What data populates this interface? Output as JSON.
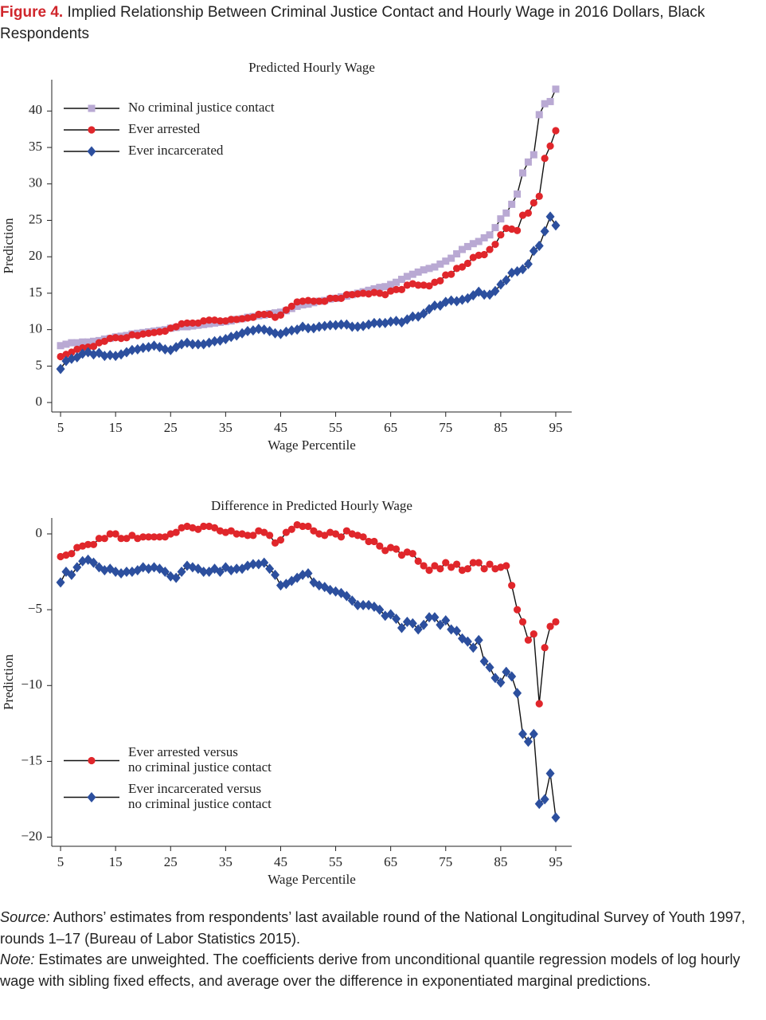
{
  "header": {
    "label": "Figure 4.",
    "title": "Implied Relationship Between Criminal Justice Contact and Hourly Wage in 2016 Dollars, Black Respondents"
  },
  "chart_data": [
    {
      "type": "line",
      "title": "Predicted Hourly Wage",
      "xlabel": "Wage Percentile",
      "ylabel": "Prediction",
      "x": [
        5,
        6,
        7,
        8,
        9,
        10,
        11,
        12,
        13,
        14,
        15,
        16,
        17,
        18,
        19,
        20,
        21,
        22,
        23,
        24,
        25,
        26,
        27,
        28,
        29,
        30,
        31,
        32,
        33,
        34,
        35,
        36,
        37,
        38,
        39,
        40,
        41,
        42,
        43,
        44,
        45,
        46,
        47,
        48,
        49,
        50,
        51,
        52,
        53,
        54,
        55,
        56,
        57,
        58,
        59,
        60,
        61,
        62,
        63,
        64,
        65,
        66,
        67,
        68,
        69,
        70,
        71,
        72,
        73,
        74,
        75,
        76,
        77,
        78,
        79,
        80,
        81,
        82,
        83,
        84,
        85,
        86,
        87,
        88,
        89,
        90,
        91,
        92,
        93,
        94,
        95
      ],
      "xlim": [
        3.4,
        97.9
      ],
      "xticks": [
        5,
        15,
        25,
        35,
        45,
        55,
        65,
        75,
        85,
        95
      ],
      "ylim": [
        -1.3,
        44.3
      ],
      "yticks": [
        0,
        5,
        10,
        15,
        20,
        25,
        30,
        35,
        40
      ],
      "legend": "upper left",
      "series": [
        {
          "name": "No criminal justice contact",
          "color": "#b9a9d3",
          "marker": "square",
          "values": [
            7.8,
            8.0,
            8.2,
            8.2,
            8.3,
            8.3,
            8.4,
            8.5,
            8.7,
            8.8,
            9.0,
            9.1,
            9.2,
            9.4,
            9.5,
            9.6,
            9.7,
            9.8,
            9.9,
            10.0,
            10.2,
            10.3,
            10.4,
            10.4,
            10.5,
            10.6,
            10.7,
            10.8,
            10.9,
            11.0,
            11.1,
            11.2,
            11.4,
            11.5,
            11.7,
            11.8,
            11.9,
            12.0,
            12.2,
            12.3,
            12.4,
            12.6,
            12.9,
            13.2,
            13.4,
            13.5,
            13.7,
            13.9,
            14.0,
            14.2,
            14.3,
            14.5,
            14.6,
            14.8,
            15.0,
            15.2,
            15.4,
            15.6,
            15.8,
            15.9,
            16.2,
            16.5,
            16.9,
            17.3,
            17.6,
            17.9,
            18.2,
            18.4,
            18.6,
            19.0,
            19.4,
            19.8,
            20.4,
            21.0,
            21.4,
            21.8,
            22.1,
            22.6,
            23.0,
            24.0,
            25.2,
            26.0,
            27.2,
            28.6,
            31.5,
            33.0,
            34.0,
            39.5,
            41.0,
            41.3,
            43.0
          ]
        },
        {
          "name": "Ever arrested",
          "color": "#e0262b",
          "marker": "circle",
          "values": [
            6.3,
            6.6,
            6.9,
            7.3,
            7.5,
            7.6,
            7.7,
            8.2,
            8.4,
            8.8,
            8.9,
            8.8,
            8.9,
            9.3,
            9.2,
            9.4,
            9.5,
            9.6,
            9.7,
            9.8,
            10.2,
            10.4,
            10.8,
            10.9,
            10.9,
            10.9,
            11.2,
            11.3,
            11.3,
            11.2,
            11.2,
            11.4,
            11.4,
            11.5,
            11.6,
            11.7,
            12.1,
            12.1,
            12.1,
            11.7,
            12.0,
            12.7,
            13.2,
            13.8,
            13.9,
            14.0,
            13.9,
            13.9,
            13.9,
            14.3,
            14.3,
            14.3,
            14.8,
            14.8,
            14.9,
            15.0,
            14.9,
            15.1,
            15.0,
            14.8,
            15.3,
            15.5,
            15.5,
            16.1,
            16.3,
            16.1,
            16.1,
            16.0,
            16.5,
            16.7,
            17.5,
            17.6,
            18.4,
            18.6,
            19.1,
            19.9,
            20.2,
            20.3,
            21.0,
            21.7,
            23.0,
            23.9,
            23.8,
            23.6,
            25.7,
            26.0,
            27.4,
            28.3,
            33.5,
            35.2,
            37.3
          ]
        },
        {
          "name": "Ever incarcerated",
          "color": "#2c4f9e",
          "marker": "diamond",
          "values": [
            4.6,
            5.7,
            6.0,
            6.2,
            6.7,
            6.9,
            6.6,
            6.8,
            6.4,
            6.5,
            6.4,
            6.6,
            6.9,
            7.2,
            7.3,
            7.5,
            7.6,
            7.8,
            7.6,
            7.3,
            7.2,
            7.6,
            8.0,
            8.2,
            8.0,
            8.0,
            8.0,
            8.2,
            8.4,
            8.5,
            8.7,
            9.0,
            9.2,
            9.5,
            9.8,
            9.9,
            10.1,
            10.0,
            9.8,
            9.5,
            9.4,
            9.7,
            9.9,
            10.0,
            10.4,
            10.2,
            10.2,
            10.4,
            10.5,
            10.6,
            10.6,
            10.7,
            10.7,
            10.4,
            10.4,
            10.5,
            10.7,
            10.9,
            10.9,
            10.9,
            11.1,
            11.2,
            11.0,
            11.4,
            11.8,
            11.8,
            12.2,
            12.8,
            13.3,
            13.3,
            13.8,
            14.0,
            13.9,
            14.1,
            14.3,
            14.7,
            15.2,
            14.8,
            14.8,
            15.3,
            16.2,
            16.8,
            17.8,
            18.0,
            18.3,
            19.0,
            20.8,
            21.5,
            23.5,
            25.5,
            24.3
          ]
        }
      ]
    },
    {
      "type": "line",
      "title": "Difference in Predicted Hourly Wage",
      "xlabel": "Wage Percentile",
      "ylabel": "Prediction",
      "x": [
        5,
        6,
        7,
        8,
        9,
        10,
        11,
        12,
        13,
        14,
        15,
        16,
        17,
        18,
        19,
        20,
        21,
        22,
        23,
        24,
        25,
        26,
        27,
        28,
        29,
        30,
        31,
        32,
        33,
        34,
        35,
        36,
        37,
        38,
        39,
        40,
        41,
        42,
        43,
        44,
        45,
        46,
        47,
        48,
        49,
        50,
        51,
        52,
        53,
        54,
        55,
        56,
        57,
        58,
        59,
        60,
        61,
        62,
        63,
        64,
        65,
        66,
        67,
        68,
        69,
        70,
        71,
        72,
        73,
        74,
        75,
        76,
        77,
        78,
        79,
        80,
        81,
        82,
        83,
        84,
        85,
        86,
        87,
        88,
        89,
        90,
        91,
        92,
        93,
        94,
        95
      ],
      "xlim": [
        3.4,
        97.9
      ],
      "xticks": [
        5,
        15,
        25,
        35,
        45,
        55,
        65,
        75,
        85,
        95
      ],
      "ylim": [
        -20.6,
        1.05
      ],
      "yticks": [
        0,
        {
          "value": -5,
          "label": "−5"
        },
        {
          "value": -10,
          "label": "−10"
        },
        {
          "value": -15,
          "label": "−15"
        },
        {
          "value": -20,
          "label": "−20"
        }
      ],
      "legend": "lower left",
      "series": [
        {
          "name": "Ever arrested versus\nno criminal justice contact",
          "color": "#e0262b",
          "marker": "circle",
          "values": [
            -1.5,
            -1.4,
            -1.3,
            -0.9,
            -0.8,
            -0.7,
            -0.7,
            -0.3,
            -0.3,
            0,
            0,
            -0.3,
            -0.3,
            -0.1,
            -0.3,
            -0.2,
            -0.2,
            -0.2,
            -0.2,
            -0.2,
            0,
            0.1,
            0.4,
            0.5,
            0.4,
            0.3,
            0.5,
            0.5,
            0.4,
            0.2,
            0.1,
            0.2,
            0,
            0,
            -0.1,
            -0.1,
            0.2,
            0.1,
            -0.1,
            -0.6,
            -0.4,
            0.1,
            0.3,
            0.6,
            0.5,
            0.5,
            0.2,
            0,
            -0.1,
            0.1,
            0,
            -0.2,
            0.2,
            0,
            -0.1,
            -0.2,
            -0.5,
            -0.5,
            -0.8,
            -1.1,
            -0.9,
            -1.0,
            -1.4,
            -1.2,
            -1.3,
            -1.8,
            -2.1,
            -2.4,
            -2.1,
            -2.3,
            -1.9,
            -2.2,
            -2.0,
            -2.4,
            -2.3,
            -1.9,
            -1.9,
            -2.3,
            -2.0,
            -2.3,
            -2.2,
            -2.1,
            -3.4,
            -5.0,
            -5.8,
            -7.0,
            -6.6,
            -11.2,
            -7.5,
            -6.1,
            -5.8
          ]
        },
        {
          "name": "Ever incarcerated versus\nno criminal justice contact",
          "color": "#2c4f9e",
          "marker": "diamond",
          "values": [
            -3.2,
            -2.5,
            -2.7,
            -2.2,
            -1.8,
            -1.7,
            -1.9,
            -2.2,
            -2.4,
            -2.3,
            -2.5,
            -2.6,
            -2.5,
            -2.5,
            -2.4,
            -2.2,
            -2.3,
            -2.2,
            -2.3,
            -2.5,
            -2.8,
            -2.9,
            -2.5,
            -2.1,
            -2.2,
            -2.3,
            -2.5,
            -2.5,
            -2.3,
            -2.5,
            -2.2,
            -2.4,
            -2.3,
            -2.3,
            -2.1,
            -2.0,
            -2.0,
            -1.9,
            -2.3,
            -2.7,
            -3.4,
            -3.3,
            -3.1,
            -2.9,
            -2.7,
            -2.6,
            -3.2,
            -3.4,
            -3.5,
            -3.7,
            -3.8,
            -3.9,
            -4.1,
            -4.4,
            -4.7,
            -4.7,
            -4.7,
            -4.8,
            -5.0,
            -5.4,
            -5.3,
            -5.6,
            -6.2,
            -5.8,
            -5.9,
            -6.3,
            -6.0,
            -5.5,
            -5.5,
            -6.0,
            -5.7,
            -6.3,
            -6.4,
            -6.9,
            -7.1,
            -7.5,
            -7.0,
            -8.4,
            -8.8,
            -9.5,
            -9.8,
            -9.1,
            -9.4,
            -10.5,
            -13.2,
            -13.7,
            -13.2,
            -17.8,
            -17.5,
            -15.8,
            -18.7
          ]
        }
      ]
    }
  ],
  "footer": {
    "source_label": "Source:",
    "source": "Authors’ estimates from respondents’ last available round of the National Longitudinal Survey of Youth 1997, rounds 1–17 (Bureau of Labor Statistics 2015).",
    "note_label": "Note:",
    "note": "Estimates are unweighted. The coefficients derive from unconditional quantile regression models of log hourly wage with sibling fixed effects, and average over the difference in exponentiated marginal predictions."
  }
}
